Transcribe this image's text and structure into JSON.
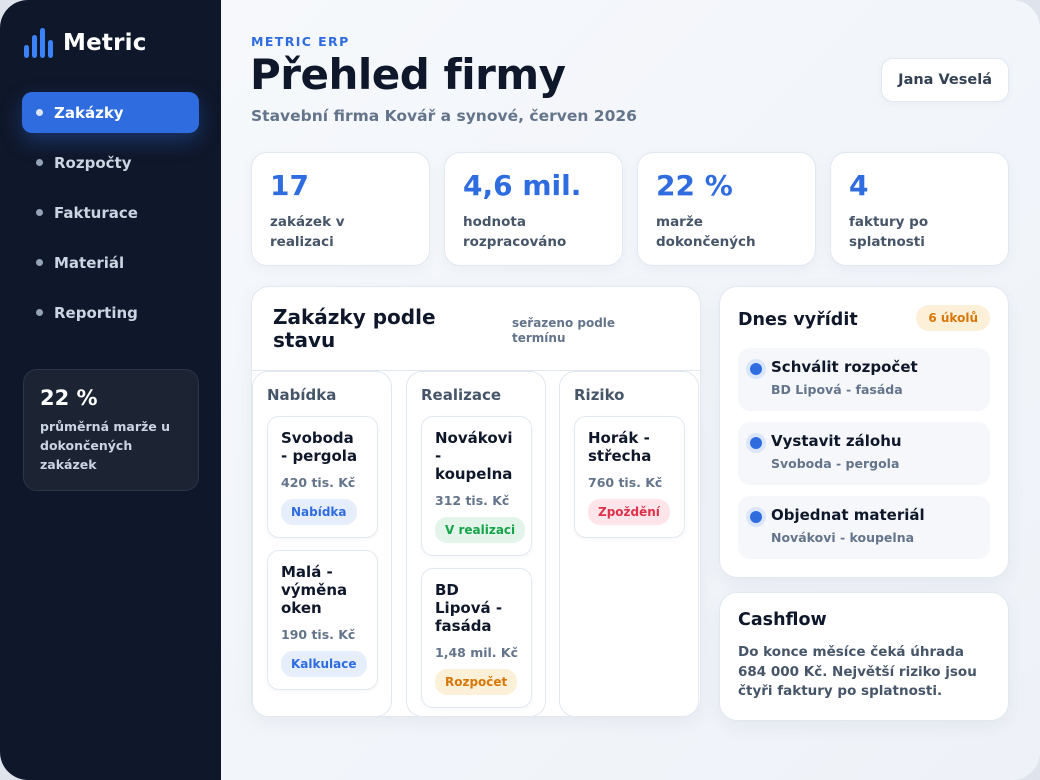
{
  "brand": {
    "name": "Metric"
  },
  "sidebar": {
    "items": [
      {
        "label": "Zakázky",
        "active": true
      },
      {
        "label": "Rozpočty",
        "active": false
      },
      {
        "label": "Fakturace",
        "active": false
      },
      {
        "label": "Materiál",
        "active": false
      },
      {
        "label": "Reporting",
        "active": false
      }
    ],
    "summary": {
      "value": "22 %",
      "label": "průměrná marže u dokončených zakázek"
    }
  },
  "header": {
    "eyebrow": "METRIC ERP",
    "title": "Přehled firmy",
    "subtitle": "Stavební firma Kovář a synové, červen 2026",
    "user": "Jana Veselá"
  },
  "kpis": [
    {
      "value": "17",
      "label": "zakázek v realizaci"
    },
    {
      "value": "4,6 mil.",
      "label": "hodnota rozpracováno"
    },
    {
      "value": "22 %",
      "label": "marže dokončených"
    },
    {
      "value": "4",
      "label": "faktury po splatnosti"
    }
  ],
  "board": {
    "title": "Zakázky podle stavu",
    "sort_note": "seřazeno podle termínu",
    "columns": [
      {
        "title": "Nabídka",
        "cards": [
          {
            "name": "Svoboda - pergola",
            "amount": "420 tis. Kč",
            "status": "Nabídka"
          },
          {
            "name": "Malá - výměna oken",
            "amount": "190 tis. Kč",
            "status": "Kalkulace"
          }
        ]
      },
      {
        "title": "Realizace",
        "cards": [
          {
            "name": "Novákovi - koupelna",
            "amount": "312 tis. Kč",
            "status": "V realizaci"
          },
          {
            "name": "BD Lipová - fasáda",
            "amount": "1,48 mil. Kč",
            "status": "Rozpočet"
          }
        ]
      },
      {
        "title": "Riziko",
        "cards": [
          {
            "name": "Horák - střecha",
            "amount": "760 tis. Kč",
            "status": "Zpoždění"
          }
        ]
      }
    ]
  },
  "todo": {
    "title": "Dnes vyřídit",
    "badge": "6 úkolů",
    "tasks": [
      {
        "title": "Schválit rozpočet",
        "subtitle": "BD Lipová - fasáda"
      },
      {
        "title": "Vystavit zálohu",
        "subtitle": "Svoboda - pergola"
      },
      {
        "title": "Objednat materiál",
        "subtitle": "Novákovi - koupelna"
      }
    ]
  },
  "cashflow": {
    "title": "Cashflow",
    "text": "Do konce měsíce čeká úhrada 684 000 Kč. Největší riziko jsou čtyři faktury po splatnosti."
  },
  "colors": {
    "accent": "#2f6ce0",
    "sidebar_bg": "#0f172a",
    "status_blue": "#2f6ce0",
    "status_green": "#16a34a",
    "status_orange": "#d97706",
    "status_red": "#e0314b"
  }
}
